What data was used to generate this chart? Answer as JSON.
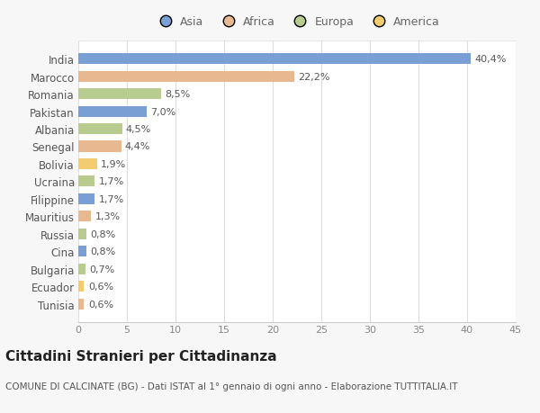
{
  "countries": [
    "India",
    "Marocco",
    "Romania",
    "Pakistan",
    "Albania",
    "Senegal",
    "Bolivia",
    "Ucraina",
    "Filippine",
    "Mauritius",
    "Russia",
    "Cina",
    "Bulgaria",
    "Ecuador",
    "Tunisia"
  ],
  "values": [
    40.4,
    22.2,
    8.5,
    7.0,
    4.5,
    4.4,
    1.9,
    1.7,
    1.7,
    1.3,
    0.8,
    0.8,
    0.7,
    0.6,
    0.6
  ],
  "labels": [
    "40,4%",
    "22,2%",
    "8,5%",
    "7,0%",
    "4,5%",
    "4,4%",
    "1,9%",
    "1,7%",
    "1,7%",
    "1,3%",
    "0,8%",
    "0,8%",
    "0,7%",
    "0,6%",
    "0,6%"
  ],
  "colors": [
    "#7a9fd4",
    "#e8b990",
    "#b8cc90",
    "#7a9fd4",
    "#b8cc90",
    "#e8b990",
    "#f2cc6e",
    "#b8cc90",
    "#7a9fd4",
    "#e8b990",
    "#b8cc90",
    "#7a9fd4",
    "#b8cc90",
    "#f2cc6e",
    "#e8b990"
  ],
  "legend_labels": [
    "Asia",
    "Africa",
    "Europa",
    "America"
  ],
  "legend_colors": [
    "#7a9fd4",
    "#e8b990",
    "#b8cc90",
    "#f2cc6e"
  ],
  "title": "Cittadini Stranieri per Cittadinanza",
  "subtitle": "COMUNE DI CALCINATE (BG) - Dati ISTAT al 1° gennaio di ogni anno - Elaborazione TUTTITALIA.IT",
  "xlim": [
    0,
    45
  ],
  "xticks": [
    0,
    5,
    10,
    15,
    20,
    25,
    30,
    35,
    40,
    45
  ],
  "bg_color": "#f7f7f7",
  "bar_area_color": "#ffffff",
  "label_fontsize": 8,
  "country_fontsize": 8.5,
  "tick_fontsize": 8,
  "title_fontsize": 11,
  "subtitle_fontsize": 7.5,
  "legend_fontsize": 9
}
